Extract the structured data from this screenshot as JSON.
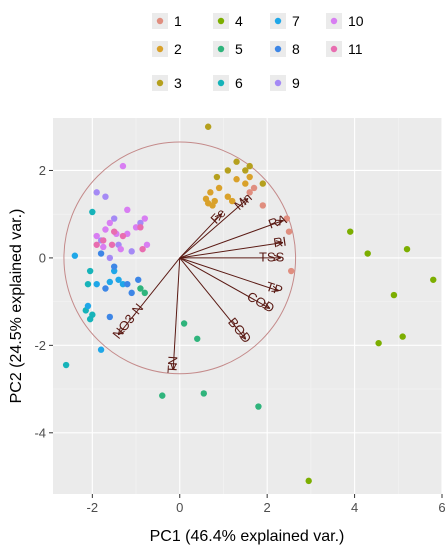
{
  "chart_data": {
    "type": "scatter",
    "subtype": "pca-biplot",
    "title": "",
    "xlabel": "PC1 (46.4% explained var.)",
    "ylabel": "PC2 (24.5% explained var.)",
    "xlim": [
      -2.9,
      6.0
    ],
    "ylim": [
      -5.4,
      3.2
    ],
    "xticks": [
      -2,
      0,
      2,
      4,
      6
    ],
    "yticks": [
      -4,
      -2,
      0,
      2
    ],
    "grid": true,
    "background": "#ebebeb",
    "legend_placement": "top",
    "correlation_circle": {
      "center": [
        0,
        0
      ],
      "radius": 2.65,
      "color": "#c48a8a"
    },
    "loading_color": "#5a1a14",
    "loadings": [
      {
        "label": "RA",
        "x": 2.35,
        "y": 0.85
      },
      {
        "label": "Fe",
        "x": 0.95,
        "y": 1.0
      },
      {
        "label": "Mn",
        "x": 1.55,
        "y": 1.35
      },
      {
        "label": "RI",
        "x": 2.35,
        "y": 0.35
      },
      {
        "label": "TSS",
        "x": 2.3,
        "y": 0.0
      },
      {
        "label": "TP",
        "x": 2.25,
        "y": -0.75
      },
      {
        "label": "COD",
        "x": 2.05,
        "y": -1.15
      },
      {
        "label": "BOD",
        "x": 1.5,
        "y": -1.85
      },
      {
        "label": "TN",
        "x": -0.15,
        "y": -2.55
      },
      {
        "label": "NO3-N",
        "x": -1.4,
        "y": -1.75
      }
    ],
    "series": [
      {
        "name": "1",
        "color": "#e08e7f",
        "points": [
          [
            1.6,
            1.5
          ],
          [
            1.9,
            1.2
          ],
          [
            1.7,
            1.6
          ],
          [
            2.45,
            0.9
          ],
          [
            2.5,
            0.6
          ],
          [
            2.55,
            -0.3
          ]
        ]
      },
      {
        "name": "2",
        "color": "#d9a12a",
        "points": [
          [
            0.7,
            1.5
          ],
          [
            0.8,
            1.3
          ],
          [
            0.6,
            1.35
          ],
          [
            1.1,
            1.4
          ],
          [
            1.3,
            1.8
          ],
          [
            1.5,
            1.7
          ],
          [
            0.9,
            1.6
          ],
          [
            0.75,
            1.2
          ],
          [
            1.2,
            1.3
          ],
          [
            1.6,
            1.85
          ],
          [
            0.65,
            1.25
          ]
        ]
      },
      {
        "name": "3",
        "color": "#b5a01e",
        "points": [
          [
            0.65,
            3.0
          ],
          [
            1.1,
            2.0
          ],
          [
            1.5,
            2.0
          ],
          [
            1.3,
            2.2
          ],
          [
            1.6,
            2.1
          ],
          [
            0.85,
            1.85
          ],
          [
            1.9,
            1.7
          ]
        ]
      },
      {
        "name": "4",
        "color": "#7cae00",
        "points": [
          [
            3.9,
            0.6
          ],
          [
            4.3,
            0.1
          ],
          [
            5.2,
            0.2
          ],
          [
            5.8,
            -0.5
          ],
          [
            4.9,
            -0.85
          ],
          [
            5.1,
            -1.8
          ],
          [
            4.55,
            -1.95
          ],
          [
            2.95,
            -5.1
          ]
        ]
      },
      {
        "name": "5",
        "color": "#2fb47c",
        "points": [
          [
            -0.4,
            -3.15
          ],
          [
            0.55,
            -3.1
          ],
          [
            1.8,
            -3.4
          ],
          [
            0.1,
            -1.5
          ],
          [
            -0.8,
            -0.8
          ],
          [
            0.4,
            -1.85
          ],
          [
            -0.9,
            -0.7
          ]
        ]
      },
      {
        "name": "6",
        "color": "#16b3b9",
        "points": [
          [
            -2.0,
            1.05
          ],
          [
            -2.05,
            -0.3
          ],
          [
            -2.1,
            -0.6
          ],
          [
            -2.0,
            -1.3
          ],
          [
            -2.15,
            -1.2
          ],
          [
            -2.6,
            -2.45
          ],
          [
            -2.05,
            -1.4
          ]
        ]
      },
      {
        "name": "7",
        "color": "#1fa7e8",
        "points": [
          [
            -2.4,
            0.05
          ],
          [
            -1.6,
            -0.55
          ],
          [
            -1.9,
            -0.6
          ],
          [
            -1.3,
            -0.6
          ],
          [
            -1.8,
            -2.1
          ],
          [
            -2.1,
            -1.1
          ],
          [
            -1.5,
            -0.3
          ],
          [
            -1.4,
            -0.5
          ]
        ]
      },
      {
        "name": "8",
        "color": "#3d86e6",
        "points": [
          [
            -1.8,
            0.1
          ],
          [
            -1.2,
            -0.6
          ],
          [
            -0.95,
            -0.5
          ],
          [
            -1.7,
            -0.7
          ],
          [
            -1.5,
            -0.2
          ],
          [
            -1.6,
            -1.35
          ],
          [
            -1.1,
            -0.8
          ]
        ]
      },
      {
        "name": "9",
        "color": "#a58af5",
        "points": [
          [
            -1.9,
            1.5
          ],
          [
            -1.7,
            1.4
          ],
          [
            -1.5,
            0.9
          ],
          [
            -1.8,
            0.4
          ],
          [
            -0.9,
            0.8
          ],
          [
            -1.4,
            0.3
          ],
          [
            -1.1,
            0.15
          ],
          [
            -1.6,
            0.0
          ]
        ]
      },
      {
        "name": "10",
        "color": "#d87ef2",
        "points": [
          [
            -1.3,
            2.1
          ],
          [
            -1.6,
            0.8
          ],
          [
            -1.2,
            1.1
          ],
          [
            -0.75,
            0.3
          ],
          [
            -1.9,
            0.5
          ],
          [
            -1.0,
            0.7
          ],
          [
            -0.8,
            0.9
          ],
          [
            -1.7,
            0.65
          ],
          [
            -1.2,
            0.55
          ],
          [
            -1.75,
            0.25
          ],
          [
            -1.35,
            0.2
          ],
          [
            -1.45,
            0.55
          ]
        ]
      },
      {
        "name": "11",
        "color": "#e86db0",
        "points": [
          [
            -1.5,
            0.6
          ],
          [
            -1.3,
            0.5
          ],
          [
            -0.9,
            0.7
          ],
          [
            -1.75,
            0.4
          ],
          [
            -1.55,
            0.3
          ],
          [
            -0.85,
            0.2
          ],
          [
            -1.9,
            0.3
          ]
        ]
      }
    ]
  }
}
